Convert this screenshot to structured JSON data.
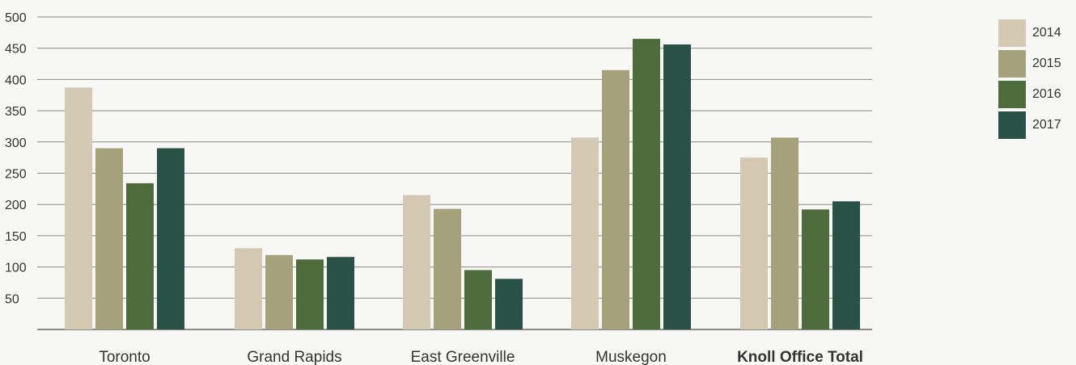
{
  "chart_data": {
    "type": "bar",
    "title": "",
    "xlabel": "",
    "ylabel": "",
    "categories": [
      "Toronto",
      "Grand Rapids",
      "East Greenville",
      "Muskegon",
      "Knoll Office Total"
    ],
    "series": [
      {
        "name": "2014",
        "color": "#d3c8b2",
        "values": [
          387,
          130,
          215,
          307,
          275
        ]
      },
      {
        "name": "2015",
        "color": "#a5a27b",
        "values": [
          290,
          119,
          193,
          415,
          307
        ]
      },
      {
        "name": "2016",
        "color": "#4d6b3b",
        "values": [
          234,
          112,
          95,
          465,
          192
        ]
      },
      {
        "name": "2017",
        "color": "#2a5146",
        "values": [
          290,
          116,
          81,
          456,
          205
        ]
      }
    ],
    "ylim": [
      0,
      500
    ],
    "yticks": [
      50,
      100,
      150,
      200,
      250,
      300,
      350,
      400,
      450,
      500
    ],
    "grid": true,
    "legend_position": "top-right",
    "bold_category": "Knoll Office Total"
  }
}
